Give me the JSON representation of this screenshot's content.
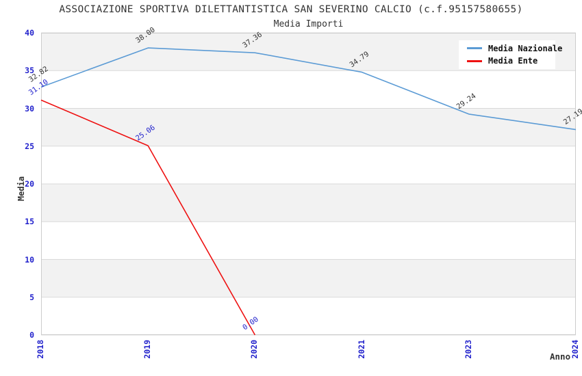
{
  "chart_data": {
    "type": "line",
    "title": "ASSOCIAZIONE SPORTIVA DILETTANTISTICA SAN SEVERINO CALCIO (c.f.95157580655)",
    "subtitle": "Media Importi",
    "xlabel": "Anno",
    "ylabel": "Media",
    "ylim": [
      0,
      40
    ],
    "ytick_step": 5,
    "yticks": [
      "0",
      "5",
      "10",
      "15",
      "20",
      "25",
      "30",
      "35",
      "40"
    ],
    "categories": [
      "2018",
      "2019",
      "2020",
      "2021",
      "2023",
      "2024"
    ],
    "series": [
      {
        "name": "Media Nazionale",
        "color": "#5b9bd5",
        "label_color": "#333333",
        "values": [
          32.82,
          38.0,
          37.36,
          34.79,
          29.24,
          27.19
        ]
      },
      {
        "name": "Media Ente",
        "color": "#ee1111",
        "label_color": "#2222cc",
        "values": [
          31.1,
          25.06,
          0.0,
          null,
          null,
          null
        ]
      }
    ],
    "legend": {
      "position": "top-right"
    },
    "grid": {
      "bands": true,
      "band_color": "#f2f2f2",
      "gridline_color": "#d9d9d9",
      "border_color": "#cccccc"
    },
    "axis_tick_color": "#2222cc"
  }
}
